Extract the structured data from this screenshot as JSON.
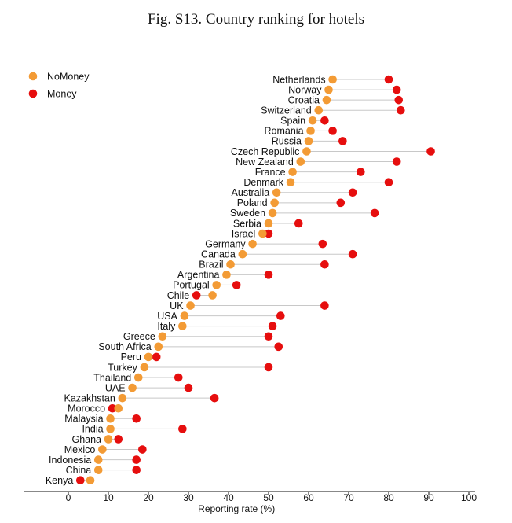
{
  "chart_data": {
    "type": "scatter",
    "title": "Fig. S13. Country ranking for hotels",
    "xlabel": "Reporting rate (%)",
    "xlim": [
      -10,
      100
    ],
    "xticks": [
      0,
      10,
      20,
      30,
      40,
      50,
      60,
      70,
      80,
      90,
      100
    ],
    "legend_position": "top-left",
    "series": [
      {
        "name": "NoMoney",
        "color": "#f39b35"
      },
      {
        "name": "Money",
        "color": "#e60e0e"
      }
    ],
    "countries": [
      "Netherlands",
      "Norway",
      "Croatia",
      "Switzerland",
      "Spain",
      "Romania",
      "Russia",
      "Czech Republic",
      "New Zealand",
      "France",
      "Denmark",
      "Australia",
      "Poland",
      "Sweden",
      "Serbia",
      "Israel",
      "Germany",
      "Canada",
      "Brazil",
      "Argentina",
      "Portugal",
      "Chile",
      "UK",
      "USA",
      "Italy",
      "Greece",
      "South Africa",
      "Peru",
      "Turkey",
      "Thailand",
      "UAE",
      "Kazakhstan",
      "Morocco",
      "Malaysia",
      "India",
      "Ghana",
      "Mexico",
      "Indonesia",
      "China",
      "Kenya"
    ],
    "nomoney": [
      66,
      65,
      64.5,
      62.5,
      61,
      60.5,
      60,
      59.5,
      58,
      56,
      55.5,
      52,
      51.5,
      51,
      50,
      48.5,
      46,
      43.5,
      40.5,
      39.5,
      37,
      36,
      30.5,
      29,
      28.5,
      23.5,
      22.5,
      20,
      19,
      17.5,
      16,
      13.5,
      12.5,
      10.5,
      10.5,
      10,
      8.5,
      7.5,
      7.5,
      5.5
    ],
    "money": [
      80,
      82,
      82.5,
      83,
      64,
      66,
      68.5,
      90.5,
      82,
      73,
      80,
      71,
      68,
      76.5,
      57.5,
      50,
      63.5,
      71,
      64,
      50,
      42,
      32,
      64,
      53,
      51,
      50,
      52.5,
      22,
      50,
      27.5,
      30,
      36.5,
      11,
      17,
      28.5,
      12.5,
      18.5,
      17,
      17,
      3
    ]
  }
}
